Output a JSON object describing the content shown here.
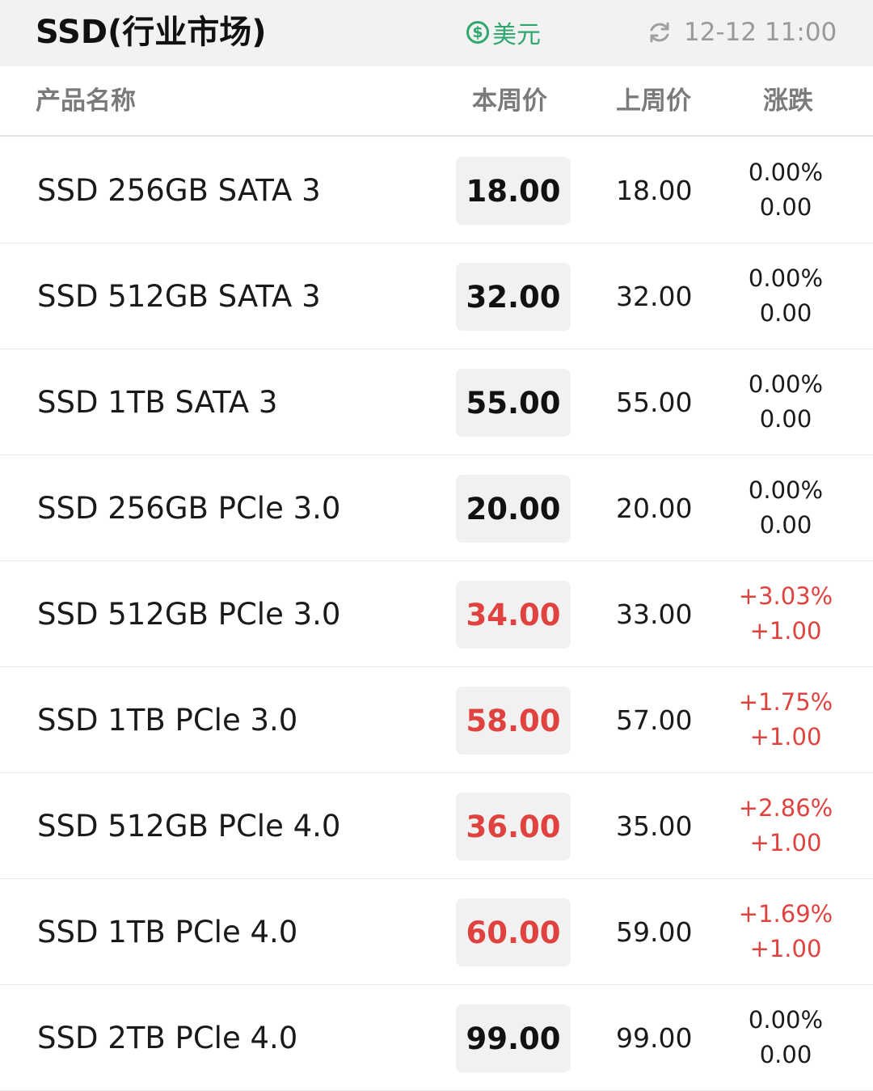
{
  "header": {
    "title": "SSD(行业市场)",
    "currency_label": "美元",
    "currency_icon": "dollar-coin-icon",
    "updated_time": "12-12 11:00",
    "refresh_icon": "refresh-icon"
  },
  "columns": {
    "name": "产品名称",
    "this_week": "本周价",
    "last_week": "上周价",
    "change": "涨跌"
  },
  "colors": {
    "up": "#e0433f",
    "currency": "#2ea86f"
  },
  "rows": [
    {
      "name": "SSD 256GB SATA 3",
      "this_week": "18.00",
      "last_week": "18.00",
      "change_pct": "0.00%",
      "change_abs": "0.00",
      "trend": "flat"
    },
    {
      "name": "SSD 512GB SATA 3",
      "this_week": "32.00",
      "last_week": "32.00",
      "change_pct": "0.00%",
      "change_abs": "0.00",
      "trend": "flat"
    },
    {
      "name": "SSD 1TB SATA 3",
      "this_week": "55.00",
      "last_week": "55.00",
      "change_pct": "0.00%",
      "change_abs": "0.00",
      "trend": "flat"
    },
    {
      "name": "SSD 256GB PCle 3.0",
      "this_week": "20.00",
      "last_week": "20.00",
      "change_pct": "0.00%",
      "change_abs": "0.00",
      "trend": "flat"
    },
    {
      "name": "SSD 512GB PCle 3.0",
      "this_week": "34.00",
      "last_week": "33.00",
      "change_pct": "+3.03%",
      "change_abs": "+1.00",
      "trend": "up"
    },
    {
      "name": "SSD 1TB PCle 3.0",
      "this_week": "58.00",
      "last_week": "57.00",
      "change_pct": "+1.75%",
      "change_abs": "+1.00",
      "trend": "up"
    },
    {
      "name": "SSD 512GB PCle 4.0",
      "this_week": "36.00",
      "last_week": "35.00",
      "change_pct": "+2.86%",
      "change_abs": "+1.00",
      "trend": "up"
    },
    {
      "name": "SSD 1TB PCle 4.0",
      "this_week": "60.00",
      "last_week": "59.00",
      "change_pct": "+1.69%",
      "change_abs": "+1.00",
      "trend": "up"
    },
    {
      "name": "SSD 2TB PCle 4.0",
      "this_week": "99.00",
      "last_week": "99.00",
      "change_pct": "0.00%",
      "change_abs": "0.00",
      "trend": "flat"
    }
  ]
}
